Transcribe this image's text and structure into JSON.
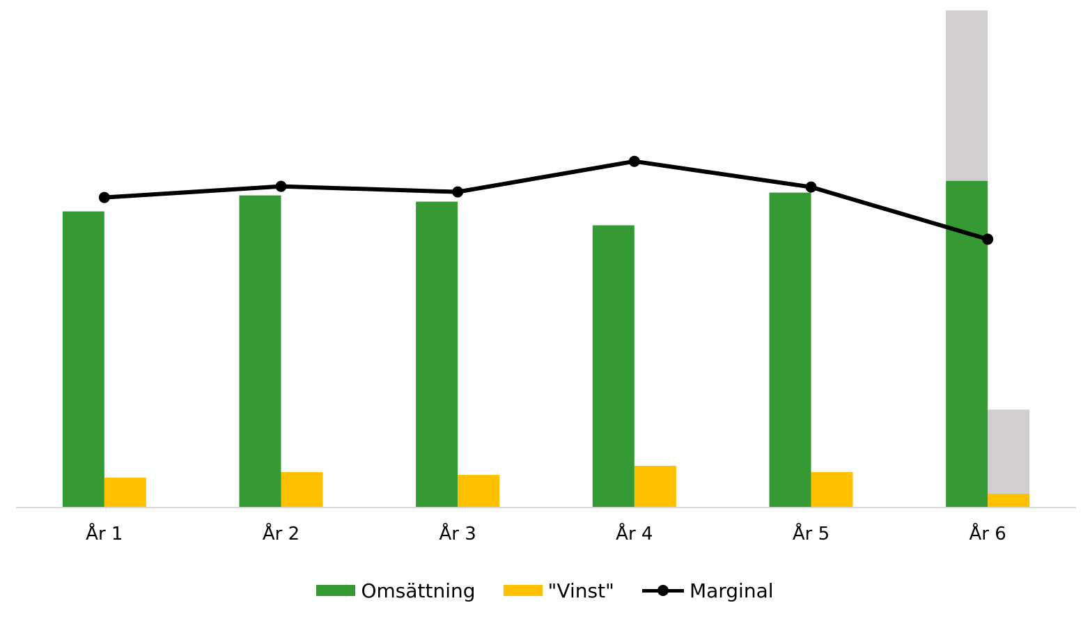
{
  "chart_data": {
    "type": "bar",
    "title": "",
    "xlabel": "",
    "ylabel": "",
    "categories": [
      "År 1",
      "År 2",
      "År 3",
      "År 4",
      "År 5",
      "År 6"
    ],
    "series": [
      {
        "name": "Omsättning",
        "kind": "bar",
        "color": "#359934",
        "values": [
          425,
          448,
          439,
          405,
          452,
          469
        ],
        "forecast_extra": [
          0,
          0,
          0,
          0,
          0,
          245
        ]
      },
      {
        "name": "\"Vinst\"",
        "kind": "bar",
        "color": "#FFC000",
        "values": [
          42,
          50,
          46,
          59,
          50,
          19
        ],
        "forecast_extra": [
          0,
          0,
          0,
          0,
          0,
          121
        ]
      },
      {
        "name": "Marginal",
        "kind": "line",
        "color": "#000000",
        "values": [
          445,
          461,
          453,
          497,
          460,
          385
        ]
      }
    ],
    "forecast_color": "#D0CECE",
    "ylim": [
      0,
      715
    ],
    "grid": false,
    "legend_position": "bottom"
  },
  "legend": {
    "items": [
      "Omsättning",
      "\"Vinst\"",
      "Marginal"
    ]
  }
}
